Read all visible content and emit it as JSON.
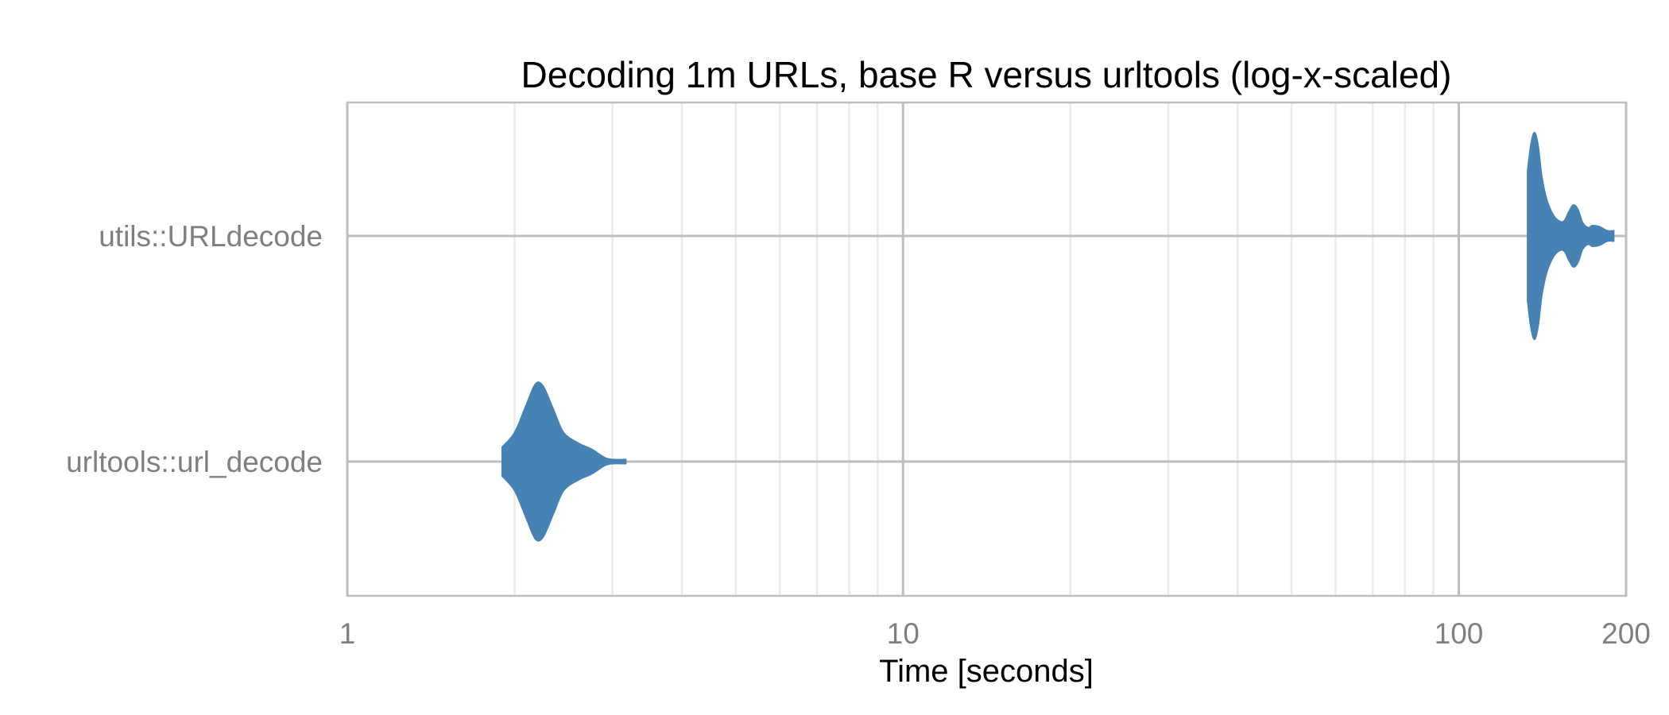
{
  "chart_data": {
    "type": "violin",
    "title": "Decoding 1m URLs, base R versus urltools (log-x-scaled)",
    "xlabel": "Time [seconds]",
    "ylabel": "",
    "x_scale": "log10",
    "xlim": [
      1,
      200
    ],
    "x_ticks": [
      1,
      10,
      100,
      200
    ],
    "x_tick_labels": [
      "1",
      "10",
      "100",
      "200"
    ],
    "x_minor_gridlines": [
      2,
      3,
      4,
      5,
      6,
      7,
      8,
      9,
      20,
      30,
      40,
      50,
      60,
      70,
      80,
      90
    ],
    "categories": [
      "utils::URLdecode",
      "urltools::url_decode"
    ],
    "grid": true,
    "fill_color": "#4682B4",
    "series": [
      {
        "category": "utils::URLdecode",
        "density": [
          [
            133,
            0.63
          ],
          [
            135,
            0.9
          ],
          [
            137,
            1.0
          ],
          [
            139,
            0.86
          ],
          [
            141,
            0.58
          ],
          [
            144,
            0.35
          ],
          [
            148,
            0.2
          ],
          [
            152,
            0.14
          ],
          [
            155,
            0.15
          ],
          [
            158,
            0.24
          ],
          [
            161,
            0.3
          ],
          [
            164,
            0.25
          ],
          [
            167,
            0.13
          ],
          [
            171,
            0.08
          ],
          [
            174,
            0.1
          ],
          [
            179,
            0.09
          ],
          [
            185,
            0.05
          ],
          [
            190,
            0.05
          ]
        ]
      },
      {
        "category": "urltools::url_decode",
        "density": [
          [
            1.9,
            0.14
          ],
          [
            2.0,
            0.28
          ],
          [
            2.1,
            0.55
          ],
          [
            2.18,
            0.75
          ],
          [
            2.25,
            0.73
          ],
          [
            2.35,
            0.5
          ],
          [
            2.45,
            0.28
          ],
          [
            2.6,
            0.18
          ],
          [
            2.75,
            0.12
          ],
          [
            2.9,
            0.04
          ],
          [
            3.0,
            0.02
          ],
          [
            3.17,
            0.02
          ]
        ]
      }
    ]
  }
}
